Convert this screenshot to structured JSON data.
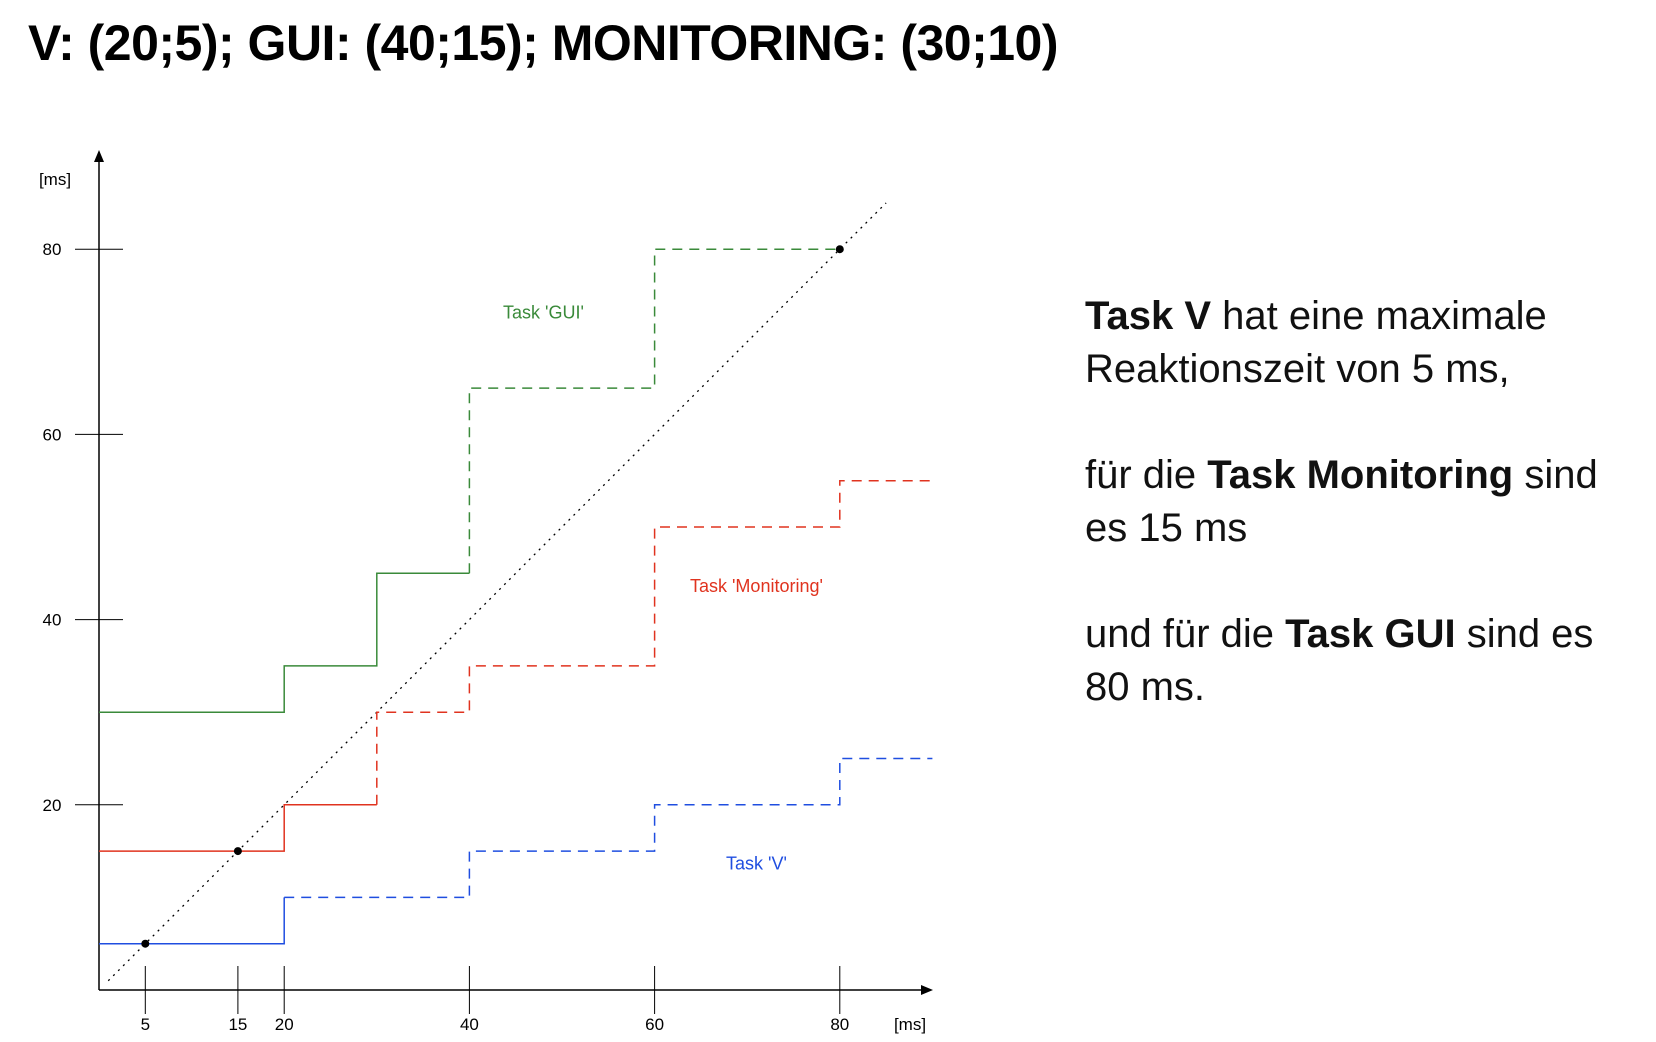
{
  "title": "V: (20;5); GUI: (40;15); MONITORING: (30;10)",
  "chart_data": {
    "type": "line",
    "x_unit": "[ms]",
    "y_unit": "[ms]",
    "xlim": [
      0,
      90
    ],
    "ylim": [
      0,
      90
    ],
    "x_ticks": [
      5,
      15,
      20,
      40,
      60,
      80
    ],
    "y_ticks": [
      20,
      40,
      60,
      80
    ],
    "colors": {
      "gui": "#3a8a3a",
      "monitoring": "#e0331f",
      "v": "#1f4ee0",
      "diagonal": "#000000"
    },
    "series": [
      {
        "key": "gui",
        "name": "Task 'GUI'",
        "label_pos": [
          48,
          72.5
        ],
        "solid": [
          [
            0,
            30
          ],
          [
            20,
            30
          ],
          [
            20,
            35
          ],
          [
            30,
            35
          ],
          [
            30,
            45
          ],
          [
            40,
            45
          ]
        ],
        "dashed": [
          [
            40,
            45
          ],
          [
            40,
            65
          ],
          [
            60,
            65
          ],
          [
            60,
            80
          ],
          [
            80,
            80
          ]
        ]
      },
      {
        "key": "monitoring",
        "name": "Task 'Monitoring'",
        "label_pos": [
          71,
          43
        ],
        "solid": [
          [
            0,
            15
          ],
          [
            20,
            15
          ],
          [
            20,
            20
          ],
          [
            30,
            20
          ]
        ],
        "dashed": [
          [
            30,
            20
          ],
          [
            30,
            30
          ],
          [
            40,
            30
          ],
          [
            40,
            35
          ],
          [
            60,
            35
          ],
          [
            60,
            50
          ],
          [
            80,
            50
          ],
          [
            80,
            55
          ],
          [
            90,
            55
          ]
        ]
      },
      {
        "key": "v",
        "name": "Task 'V'",
        "label_pos": [
          71,
          13
        ],
        "solid": [
          [
            0,
            5
          ],
          [
            20,
            5
          ],
          [
            20,
            10
          ]
        ],
        "dashed": [
          [
            20,
            10
          ],
          [
            40,
            10
          ],
          [
            40,
            15
          ],
          [
            60,
            15
          ],
          [
            60,
            20
          ],
          [
            80,
            20
          ],
          [
            80,
            25
          ],
          [
            90,
            25
          ]
        ]
      }
    ],
    "diagonal": [
      [
        1,
        1
      ],
      [
        85,
        85
      ]
    ],
    "markers": [
      [
        5,
        5
      ],
      [
        15,
        15
      ],
      [
        80,
        80
      ]
    ]
  },
  "explanation": [
    [
      {
        "b": true,
        "t": "Task V"
      },
      {
        "b": false,
        "t": " hat eine maximale Reaktionszeit von 5 ms,"
      }
    ],
    [
      {
        "b": false,
        "t": "für die "
      },
      {
        "b": true,
        "t": "Task Monitoring"
      },
      {
        "b": false,
        "t": " sind es 15 ms"
      }
    ],
    [
      {
        "b": false,
        "t": "und für die "
      },
      {
        "b": true,
        "t": "Task GUI"
      },
      {
        "b": false,
        "t": " sind es 80 ms."
      }
    ]
  ]
}
